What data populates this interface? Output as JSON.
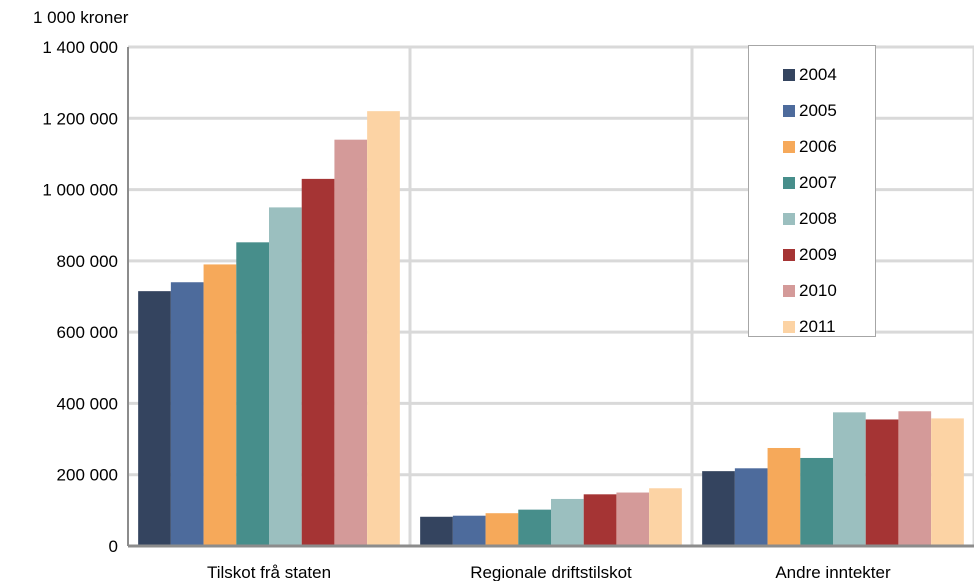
{
  "chart_data": {
    "type": "bar",
    "ylabel": "1 000 kroner",
    "categories": [
      "Tilskot frå staten",
      "Regionale driftstilskot",
      "Andre inntekter"
    ],
    "ylim": [
      0,
      1400000
    ],
    "yticks": [
      "0",
      "200 000",
      "400 000",
      "600 000",
      "800 000",
      "1 000 000",
      "1 200 000",
      "1 400 000"
    ],
    "ytick_values": [
      0,
      200000,
      400000,
      600000,
      800000,
      1000000,
      1200000,
      1400000
    ],
    "grid": true,
    "legend_position": "top-right",
    "series": [
      {
        "name": "2004",
        "color": "#34445f",
        "values": [
          715000,
          82000,
          210000
        ]
      },
      {
        "name": "2005",
        "color": "#4d6b9c",
        "values": [
          740000,
          85000,
          218000
        ]
      },
      {
        "name": "2006",
        "color": "#f6a95a",
        "values": [
          790000,
          92000,
          275000
        ]
      },
      {
        "name": "2007",
        "color": "#478e8b",
        "values": [
          852000,
          102000,
          247000
        ]
      },
      {
        "name": "2008",
        "color": "#9bbfbf",
        "values": [
          950000,
          132000,
          375000
        ]
      },
      {
        "name": "2009",
        "color": "#a53434",
        "values": [
          1030000,
          145000,
          355000
        ]
      },
      {
        "name": "2010",
        "color": "#d49a99",
        "values": [
          1140000,
          150000,
          378000
        ]
      },
      {
        "name": "2011",
        "color": "#fcd3a4",
        "values": [
          1220000,
          162000,
          358000
        ]
      }
    ]
  }
}
